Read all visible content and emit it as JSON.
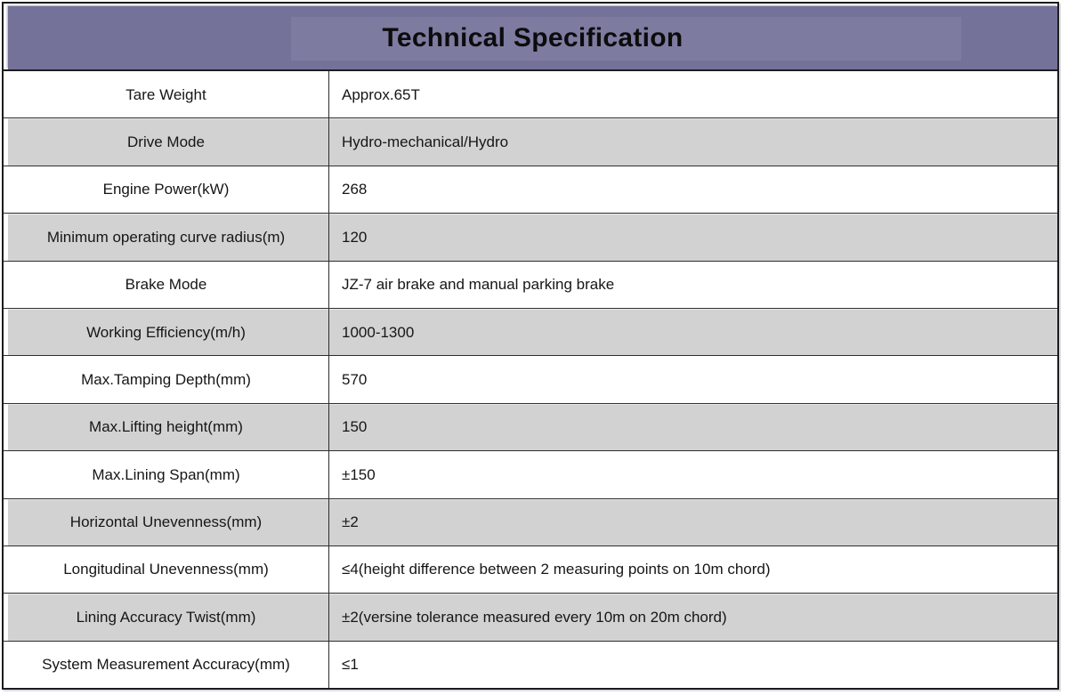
{
  "header": {
    "title": "Technical Specification"
  },
  "table": {
    "rows": [
      {
        "label": "Tare Weight",
        "value": "Approx.65T"
      },
      {
        "label": "Drive Mode",
        "value": "Hydro-mechanical/Hydro"
      },
      {
        "label": "Engine Power(kW)",
        "value": "268"
      },
      {
        "label": "Minimum operating curve radius(m)",
        "value": "120"
      },
      {
        "label": "Brake Mode",
        "value": "JZ-7 air brake and manual parking brake"
      },
      {
        "label": "Working Efficiency(m/h)",
        "value": "1000-1300"
      },
      {
        "label": "Max.Tamping Depth(mm)",
        "value": "570"
      },
      {
        "label": "Max.Lifting height(mm)",
        "value": "150"
      },
      {
        "label": "Max.Lining Span(mm)",
        "value": "±150"
      },
      {
        "label": "Horizontal Unevenness(mm)",
        "value": "±2"
      },
      {
        "label": "Longitudinal Unevenness(mm)",
        "value": "≤4(height difference between 2 measuring points on 10m chord)"
      },
      {
        "label": "Lining Accuracy Twist(mm)",
        "value": "±2(versine tolerance measured every 10m on 20m chord)"
      },
      {
        "label": "System Measurement Accuracy(mm)",
        "value": "≤1"
      }
    ]
  },
  "colors": {
    "header_bg": "#75729a",
    "row_alt_bg": "#d2d2d2",
    "border_dark": "#2e2e2e",
    "outer_border": "#1c1c1c",
    "text": "#161616"
  }
}
